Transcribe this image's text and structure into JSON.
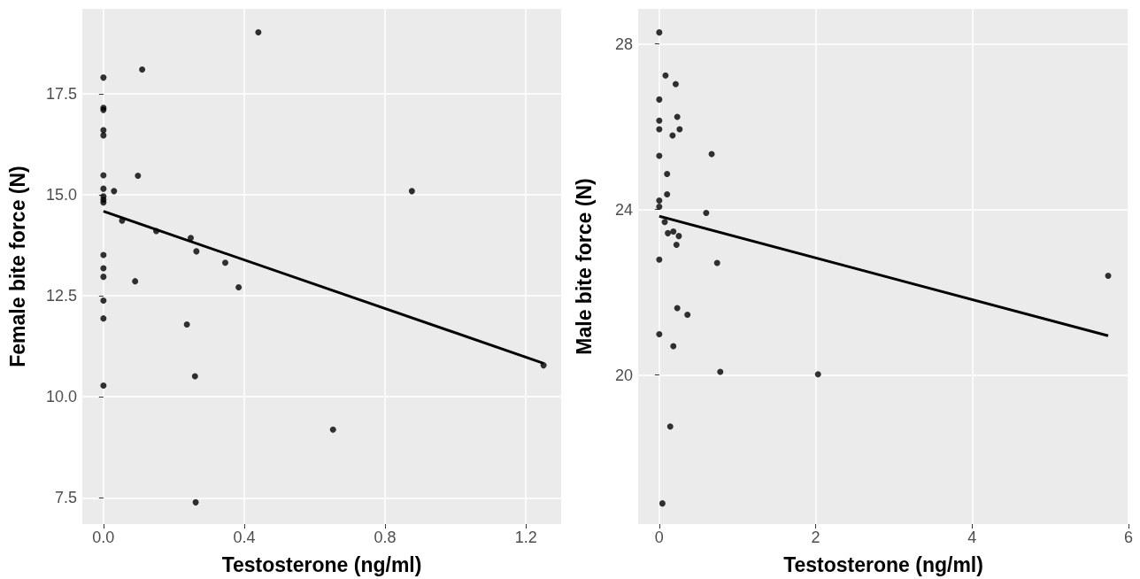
{
  "chart_data": [
    {
      "type": "scatter",
      "xlabel": "Testosterone (ng/ml)",
      "ylabel": "Female bite force (N)",
      "xlim": [
        -0.06,
        1.3
      ],
      "xticks": [
        {
          "value": 0,
          "label": "0.0"
        },
        0.4,
        0.8,
        1.2
      ],
      "ylim": [
        6.85,
        19.6
      ],
      "yticks": [
        7.5,
        {
          "value": 10,
          "label": "10.0"
        },
        12.5,
        {
          "value": 15,
          "label": "15.0"
        },
        17.5
      ],
      "grid": true,
      "series": [
        {
          "color": "#000000",
          "marker": "circle",
          "x": [
            0.44,
            0.11,
            0,
            0,
            0,
            0,
            0,
            0,
            0,
            0,
            0,
            0,
            0.03,
            0.098,
            0.053,
            0.15,
            0.248,
            0.264,
            0.346,
            0.384,
            0.09,
            0,
            0,
            0,
            0,
            0,
            0.237,
            0.26,
            0,
            0.262,
            0.652,
            0.876,
            1.25
          ],
          "values": [
            19.02,
            18.1,
            17.9,
            17.15,
            17.1,
            16.6,
            16.47,
            15.48,
            15.15,
            14.96,
            14.88,
            14.81,
            15.09,
            15.47,
            14.36,
            14.1,
            13.93,
            13.6,
            13.32,
            12.71,
            12.86,
            13.51,
            13.18,
            12.97,
            12.38,
            11.94,
            11.79,
            10.51,
            10.28,
            7.39,
            9.19,
            15.09,
            10.78
          ]
        },
        {
          "type": "line",
          "color": "#000000",
          "line_style": "solid",
          "marker": "none",
          "x": [
            0,
            1.25
          ],
          "values": [
            14.59,
            10.83
          ]
        }
      ]
    },
    {
      "type": "scatter",
      "xlabel": "Testosterone (ng/ml)",
      "ylabel": "Male bite force (N)",
      "xlim": [
        -0.27,
        6
      ],
      "xticks": [
        0,
        2,
        4,
        6
      ],
      "ylim": [
        16.4,
        28.85
      ],
      "yticks": [
        20,
        24,
        28
      ],
      "grid": true,
      "series": [
        {
          "color": "#000000",
          "marker": "circle",
          "x": [
            0,
            0.08,
            0.21,
            0,
            0,
            0,
            0.23,
            0.17,
            0.26,
            0.67,
            0,
            0.1,
            0.1,
            0,
            0,
            0.6,
            0.07,
            0.11,
            0.18,
            0.25,
            0.22,
            0,
            0.74,
            0.23,
            0.36,
            0,
            0.18,
            0.78,
            0.14,
            0.04,
            2.03,
            5.74
          ],
          "values": [
            28.28,
            27.24,
            27.03,
            26.66,
            26.15,
            25.94,
            26.24,
            25.79,
            25.94,
            25.34,
            25.3,
            24.86,
            24.37,
            24.22,
            24.07,
            23.92,
            23.7,
            23.43,
            23.47,
            23.36,
            23.15,
            22.79,
            22.71,
            21.62,
            21.46,
            20.99,
            20.7,
            20.08,
            18.76,
            16.9,
            20.02,
            22.4
          ]
        },
        {
          "type": "line",
          "color": "#000000",
          "line_style": "solid",
          "marker": "none",
          "x": [
            0,
            5.74
          ],
          "values": [
            23.84,
            20.95
          ]
        }
      ]
    }
  ]
}
